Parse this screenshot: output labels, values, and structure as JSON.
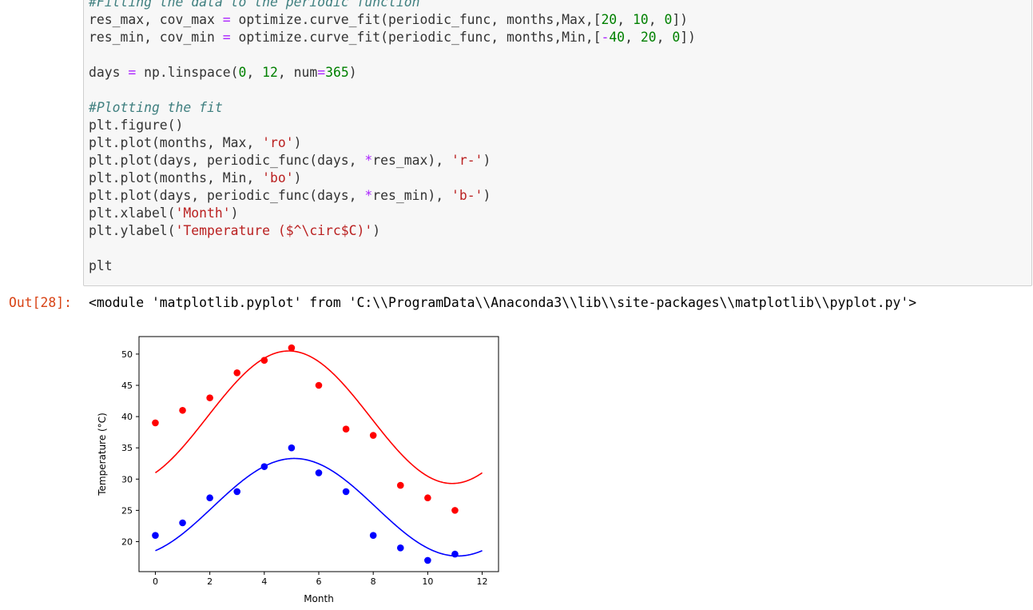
{
  "code_cell": {
    "lines": [
      [
        {
          "t": "c-com",
          "v": "#Fitting the data to the periodic function"
        }
      ],
      [
        {
          "t": "c-def",
          "v": "res_max, cov_max "
        },
        {
          "t": "c-op",
          "v": "="
        },
        {
          "t": "c-def",
          "v": " optimize.curve_fit(periodic_func, months,Max,["
        },
        {
          "t": "c-num",
          "v": "20"
        },
        {
          "t": "c-def",
          "v": ", "
        },
        {
          "t": "c-num",
          "v": "10"
        },
        {
          "t": "c-def",
          "v": ", "
        },
        {
          "t": "c-num",
          "v": "0"
        },
        {
          "t": "c-def",
          "v": "])"
        }
      ],
      [
        {
          "t": "c-def",
          "v": "res_min, cov_min "
        },
        {
          "t": "c-op",
          "v": "="
        },
        {
          "t": "c-def",
          "v": " optimize.curve_fit(periodic_func, months,Min,["
        },
        {
          "t": "c-op",
          "v": "-"
        },
        {
          "t": "c-num",
          "v": "40"
        },
        {
          "t": "c-def",
          "v": ", "
        },
        {
          "t": "c-num",
          "v": "20"
        },
        {
          "t": "c-def",
          "v": ", "
        },
        {
          "t": "c-num",
          "v": "0"
        },
        {
          "t": "c-def",
          "v": "])"
        }
      ],
      [],
      [
        {
          "t": "c-def",
          "v": "days "
        },
        {
          "t": "c-op",
          "v": "="
        },
        {
          "t": "c-def",
          "v": " np.linspace("
        },
        {
          "t": "c-num",
          "v": "0"
        },
        {
          "t": "c-def",
          "v": ", "
        },
        {
          "t": "c-num",
          "v": "12"
        },
        {
          "t": "c-def",
          "v": ", num"
        },
        {
          "t": "c-op",
          "v": "="
        },
        {
          "t": "c-num",
          "v": "365"
        },
        {
          "t": "c-def",
          "v": ")"
        }
      ],
      [],
      [
        {
          "t": "c-com",
          "v": "#Plotting the fit"
        }
      ],
      [
        {
          "t": "c-def",
          "v": "plt.figure()"
        }
      ],
      [
        {
          "t": "c-def",
          "v": "plt.plot(months, Max, "
        },
        {
          "t": "c-str",
          "v": "'ro'"
        },
        {
          "t": "c-def",
          "v": ")"
        }
      ],
      [
        {
          "t": "c-def",
          "v": "plt.plot(days, periodic_func(days, "
        },
        {
          "t": "c-op",
          "v": "*"
        },
        {
          "t": "c-def",
          "v": "res_max), "
        },
        {
          "t": "c-str",
          "v": "'r-'"
        },
        {
          "t": "c-def",
          "v": ")"
        }
      ],
      [
        {
          "t": "c-def",
          "v": "plt.plot(months, Min, "
        },
        {
          "t": "c-str",
          "v": "'bo'"
        },
        {
          "t": "c-def",
          "v": ")"
        }
      ],
      [
        {
          "t": "c-def",
          "v": "plt.plot(days, periodic_func(days, "
        },
        {
          "t": "c-op",
          "v": "*"
        },
        {
          "t": "c-def",
          "v": "res_min), "
        },
        {
          "t": "c-str",
          "v": "'b-'"
        },
        {
          "t": "c-def",
          "v": ")"
        }
      ],
      [
        {
          "t": "c-def",
          "v": "plt.xlabel("
        },
        {
          "t": "c-str",
          "v": "'Month'"
        },
        {
          "t": "c-def",
          "v": ")"
        }
      ],
      [
        {
          "t": "c-def",
          "v": "plt.ylabel("
        },
        {
          "t": "c-str",
          "v": "'Temperature ($^\\circ$C)'"
        },
        {
          "t": "c-def",
          "v": ")"
        }
      ],
      [],
      [
        {
          "t": "c-def",
          "v": "plt"
        }
      ]
    ]
  },
  "output": {
    "prompt": "Out[28]:",
    "text": "<module 'matplotlib.pyplot' from 'C:\\\\ProgramData\\\\Anaconda3\\\\lib\\\\site-packages\\\\matplotlib\\\\pyplot.py'>"
  },
  "colors": {
    "comment": "#408080",
    "number": "#008000",
    "string": "#ba2121",
    "operator": "#aa22ff",
    "prompt_out": "#d84315",
    "max_series": "#ff0000",
    "min_series": "#0000ff"
  },
  "chart_data": {
    "type": "scatter",
    "xlabel": "Month",
    "ylabel": "Temperature (°C)",
    "xlim": [
      -0.6,
      12.6
    ],
    "ylim": [
      15.2,
      52.8
    ],
    "xticks": [
      0,
      2,
      4,
      6,
      8,
      10,
      12
    ],
    "yticks": [
      20,
      25,
      30,
      35,
      40,
      45,
      50
    ],
    "grid": false,
    "series": [
      {
        "marker": "ro",
        "color": "#ff0000",
        "x": [
          0,
          1,
          2,
          3,
          4,
          5,
          6,
          7,
          8,
          9,
          10,
          11
        ],
        "values": [
          39,
          41,
          43,
          47,
          49,
          51,
          45,
          38,
          37,
          29,
          27,
          25
        ]
      },
      {
        "marker": "r-",
        "color": "#ff0000",
        "fit": {
          "amplitude": 10.6,
          "period": 12,
          "peak_month": 4.9,
          "offset": 39.9
        },
        "x_range": [
          0,
          12
        ]
      },
      {
        "marker": "bo",
        "color": "#0000ff",
        "x": [
          0,
          1,
          2,
          3,
          4,
          5,
          6,
          7,
          8,
          9,
          10,
          11
        ],
        "values": [
          21,
          23,
          27,
          28,
          32,
          35,
          31,
          28,
          21,
          19,
          17,
          18
        ]
      },
      {
        "marker": "b-",
        "color": "#0000ff",
        "fit": {
          "amplitude": 7.8,
          "period": 12,
          "peak_month": 5.1,
          "offset": 25.5
        },
        "x_range": [
          0,
          12
        ]
      }
    ]
  }
}
